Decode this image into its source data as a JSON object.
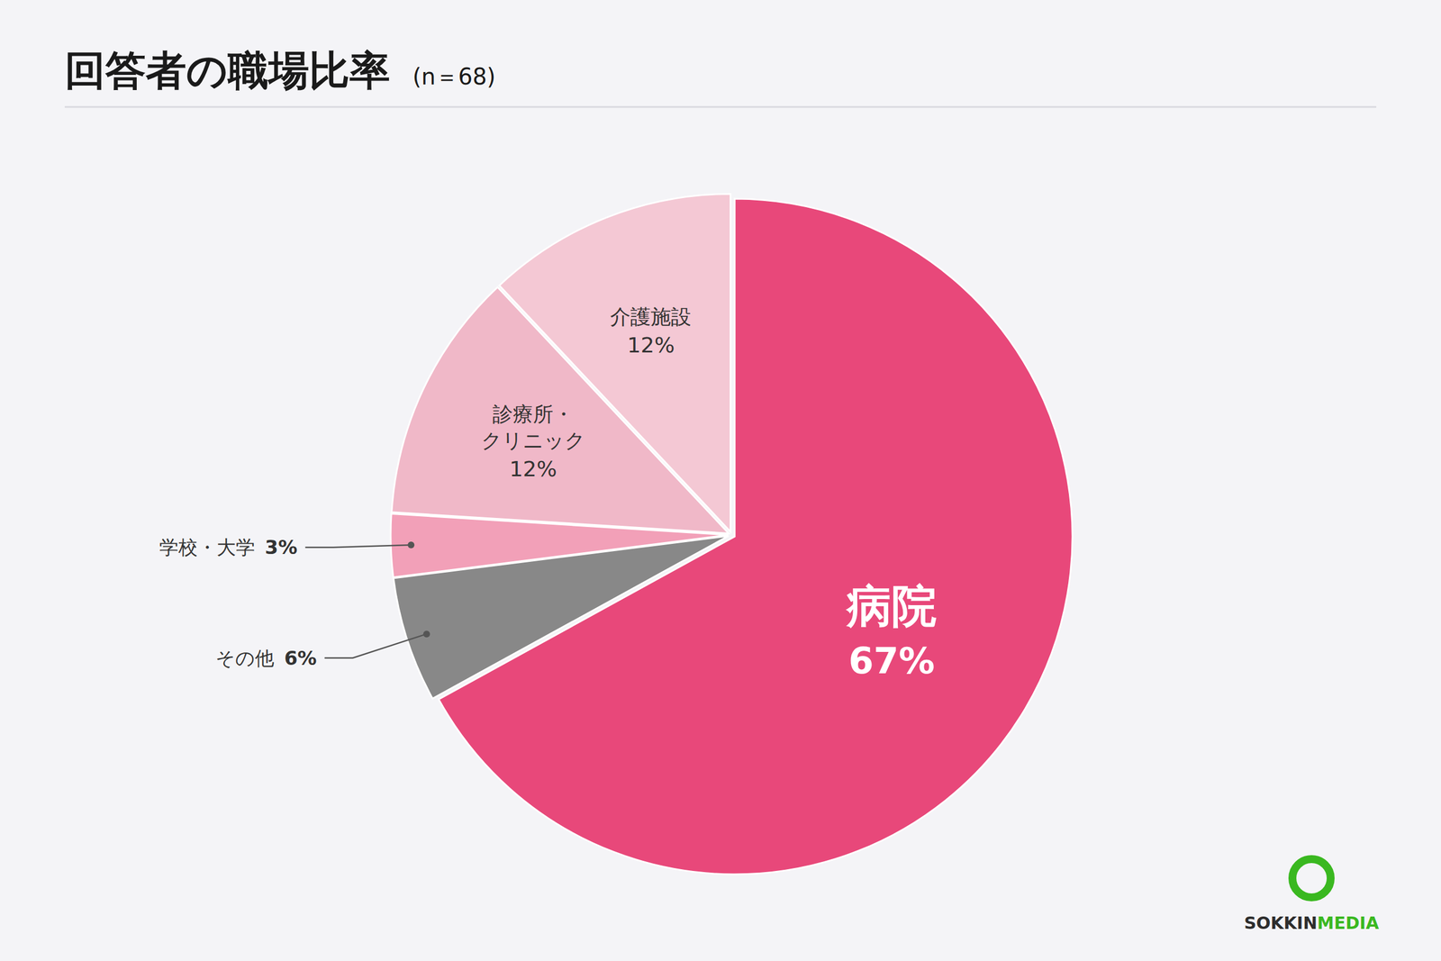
{
  "chart_data": {
    "type": "pie",
    "title": "回答者の職場比率",
    "subtitle": "(n＝68)",
    "categories": [
      "病院",
      "その他",
      "学校・大学",
      "診療所・\nクリニック",
      "介護施設"
    ],
    "values": [
      67,
      6,
      3,
      12,
      12
    ],
    "value_labels": [
      "67%",
      "6%",
      "3%",
      "12%",
      "12%"
    ],
    "colors": [
      "#e8487a",
      "#888888",
      "#f2a0b8",
      "#f0b8c8",
      "#f4c8d4"
    ],
    "data_labels": true,
    "annotations": [
      {
        "text": "SOKKIN",
        "color": "#2d2d2d"
      },
      {
        "text": "MEDIA",
        "color": "#3ab820"
      }
    ]
  }
}
